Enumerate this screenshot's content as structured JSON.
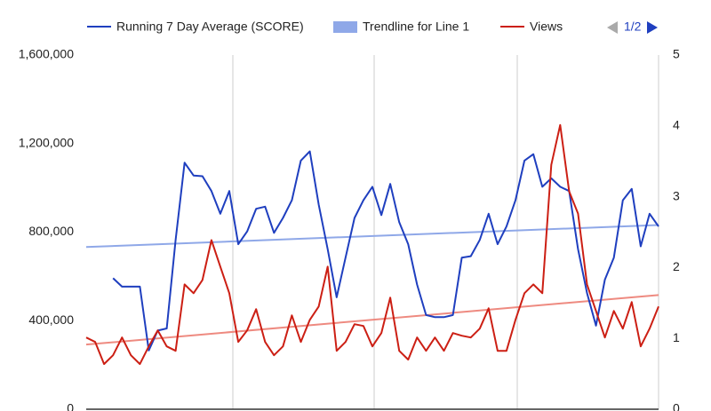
{
  "chart_data": {
    "type": "line",
    "categories": [
      null,
      null,
      null,
      null,
      null,
      null,
      null,
      null,
      null,
      null,
      null,
      null,
      null,
      null,
      null,
      null,
      null,
      null,
      null,
      null,
      null,
      null,
      null,
      null,
      null,
      null,
      null,
      null,
      null,
      null,
      null,
      null,
      null,
      null,
      null,
      null,
      null,
      null,
      null,
      null,
      null,
      null,
      null,
      null,
      null,
      null,
      null,
      null,
      null,
      null,
      null,
      null,
      null,
      null,
      null,
      null,
      null,
      null,
      null,
      null,
      null,
      null,
      null,
      null,
      null
    ],
    "series": [
      {
        "name": "Running 7 Day Average (SCORE)",
        "color": "#1f3fbf",
        "axis": "y2",
        "values": [
          null,
          null,
          null,
          1.85,
          1.73,
          1.73,
          1.73,
          0.83,
          1.11,
          1.14,
          2.39,
          3.48,
          3.3,
          3.29,
          3.08,
          2.76,
          3.08,
          2.33,
          2.51,
          2.83,
          2.86,
          2.49,
          2.7,
          2.95,
          3.51,
          3.64,
          2.89,
          2.26,
          1.58,
          2.14,
          2.7,
          2.95,
          3.14,
          2.74,
          3.18,
          2.64,
          2.33,
          1.76,
          1.33,
          1.3,
          1.3,
          1.33,
          2.14,
          2.16,
          2.39,
          2.76,
          2.33,
          2.58,
          2.95,
          3.51,
          3.6,
          3.14,
          3.26,
          3.14,
          3.08,
          2.26,
          1.64,
          1.18,
          1.83,
          2.14,
          2.95,
          3.11,
          2.3,
          2.76,
          2.58
        ]
      },
      {
        "name": "Views",
        "color": "#cc1f14",
        "values": [
          324000,
          304000,
          204000,
          244000,
          324000,
          244000,
          204000,
          284000,
          356000,
          284000,
          264000,
          564000,
          524000,
          584000,
          764000,
          644000,
          524000,
          304000,
          356000,
          452000,
          304000,
          244000,
          284000,
          424000,
          304000,
          404000,
          464000,
          644000,
          264000,
          304000,
          384000,
          376000,
          284000,
          344000,
          504000,
          264000,
          224000,
          324000,
          264000,
          324000,
          264000,
          344000,
          332000,
          324000,
          364000,
          456000,
          264000,
          264000,
          404000,
          524000,
          564000,
          524000,
          1104000,
          1284000,
          984000,
          884000,
          564000,
          444000,
          324000,
          444000,
          364000,
          484000,
          284000,
          364000,
          464000
        ]
      }
    ],
    "trendlines": [
      {
        "name": "Trendline for Line 1",
        "color": "#8fa8e8",
        "axis": "y2",
        "values": [
          2.29,
          2.6
        ]
      },
      {
        "color": "#ee8a80",
        "values": [
          292000,
          516000
        ]
      }
    ],
    "legend_page": "1/2",
    "ylim": [
      0,
      1600000
    ],
    "yticks": [
      {
        "value": 0,
        "label": "0"
      },
      {
        "value": 400000,
        "label": "400,000"
      },
      {
        "value": 800000,
        "label": "800,000"
      },
      {
        "value": 1200000,
        "label": "1,200,000"
      },
      {
        "value": 1600000,
        "label": "1,600,000"
      }
    ],
    "y2lim": [
      0,
      5
    ],
    "y2ticks": [
      0,
      1,
      2,
      3,
      4,
      5
    ],
    "legend": "top"
  }
}
